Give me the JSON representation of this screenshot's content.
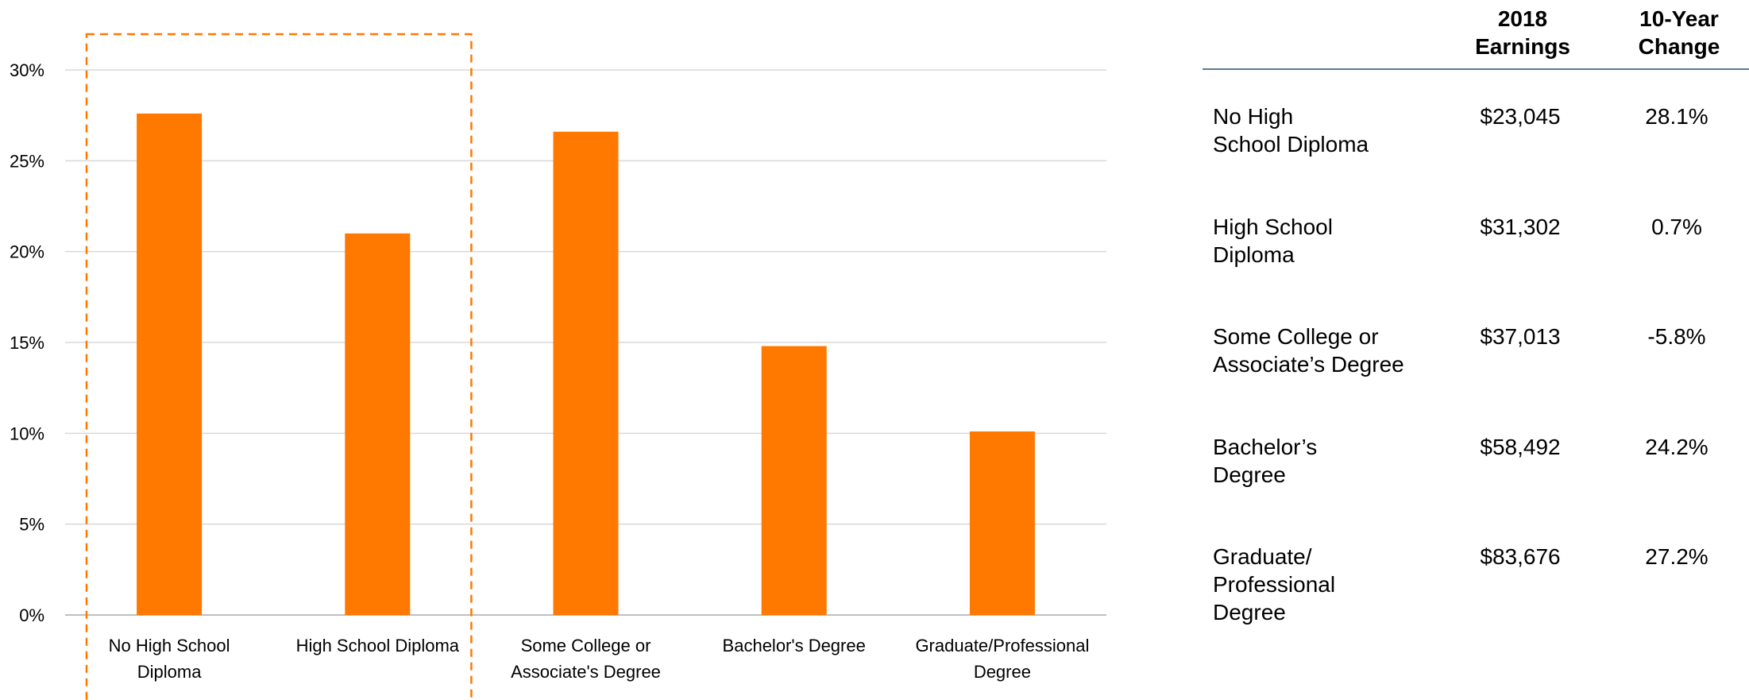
{
  "chart_data": {
    "type": "bar",
    "categories": [
      [
        "No High School",
        "Diploma"
      ],
      [
        "High School Diploma"
      ],
      [
        "Some College or",
        "Associate's Degree"
      ],
      [
        "Bachelor's Degree"
      ],
      [
        "Graduate/Professional",
        "Degree"
      ]
    ],
    "values": [
      27.6,
      21.0,
      26.6,
      14.8,
      10.1
    ],
    "ylim": [
      0,
      30
    ],
    "yticks": [
      0,
      5,
      10,
      15,
      20,
      25,
      30
    ],
    "ytick_labels": [
      "0%",
      "5%",
      "10%",
      "15%",
      "20%",
      "25%",
      "30%"
    ],
    "grid": true,
    "bar_color": "#FF7800",
    "highlight_color": "#FF7800",
    "highlight_categories": [
      0,
      1
    ]
  },
  "table": {
    "headers": [
      [
        "2018",
        "Earnings"
      ],
      [
        "10-Year",
        "Change"
      ]
    ],
    "rows": [
      {
        "label": [
          "No High",
          "School Diploma"
        ],
        "earnings": "$23,045",
        "change": "28.1%"
      },
      {
        "label": [
          "High School",
          "Diploma"
        ],
        "earnings": "$31,302",
        "change": "0.7%"
      },
      {
        "label": [
          "Some College or",
          "Associate’s Degree"
        ],
        "earnings": "$37,013",
        "change": "-5.8%"
      },
      {
        "label": [
          "Bachelor’s",
          "Degree"
        ],
        "earnings": "$58,492",
        "change": "24.2%"
      },
      {
        "label": [
          "Graduate/",
          "Professional",
          "Degree"
        ],
        "earnings": "$83,676",
        "change": "27.2%"
      }
    ],
    "rule_color": "#5B7A97"
  }
}
